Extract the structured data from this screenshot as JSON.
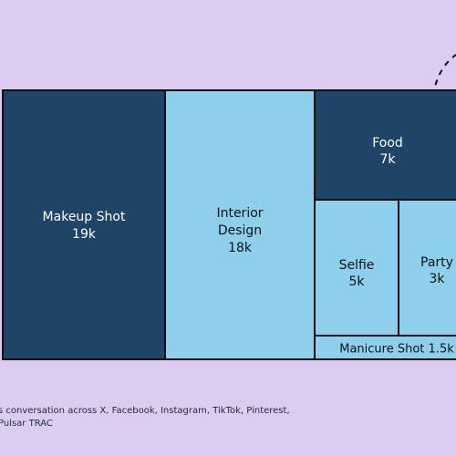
{
  "chart_data": {
    "type": "treemap",
    "items": [
      {
        "name": "Makeup Shot",
        "label": "Makeup Shot",
        "value_label": "19k",
        "value": 19000
      },
      {
        "name": "Interior Design",
        "label": "Interior Design",
        "value_label": "18k",
        "value": 18000
      },
      {
        "name": "Food",
        "label": "Food",
        "value_label": "7k",
        "value": 7000
      },
      {
        "name": "Selfie",
        "label": "Selfie",
        "value_label": "5k",
        "value": 5000
      },
      {
        "name": "Party",
        "label": "Party",
        "value_label": "3k",
        "value": 3000
      },
      {
        "name": "Manicure Shot",
        "label": "Manicure Shot 1.5k",
        "value_label": "",
        "value": 1500
      }
    ],
    "colors": {
      "dark": "#1f4468",
      "light": "#8ecfee",
      "background": "#dccdf0",
      "border": "#111111"
    }
  },
  "footnote": {
    "line1": "s conversation across X, Facebook, Instagram, TikTok, Pinterest,",
    "line2": "Pulsar TRAC"
  }
}
